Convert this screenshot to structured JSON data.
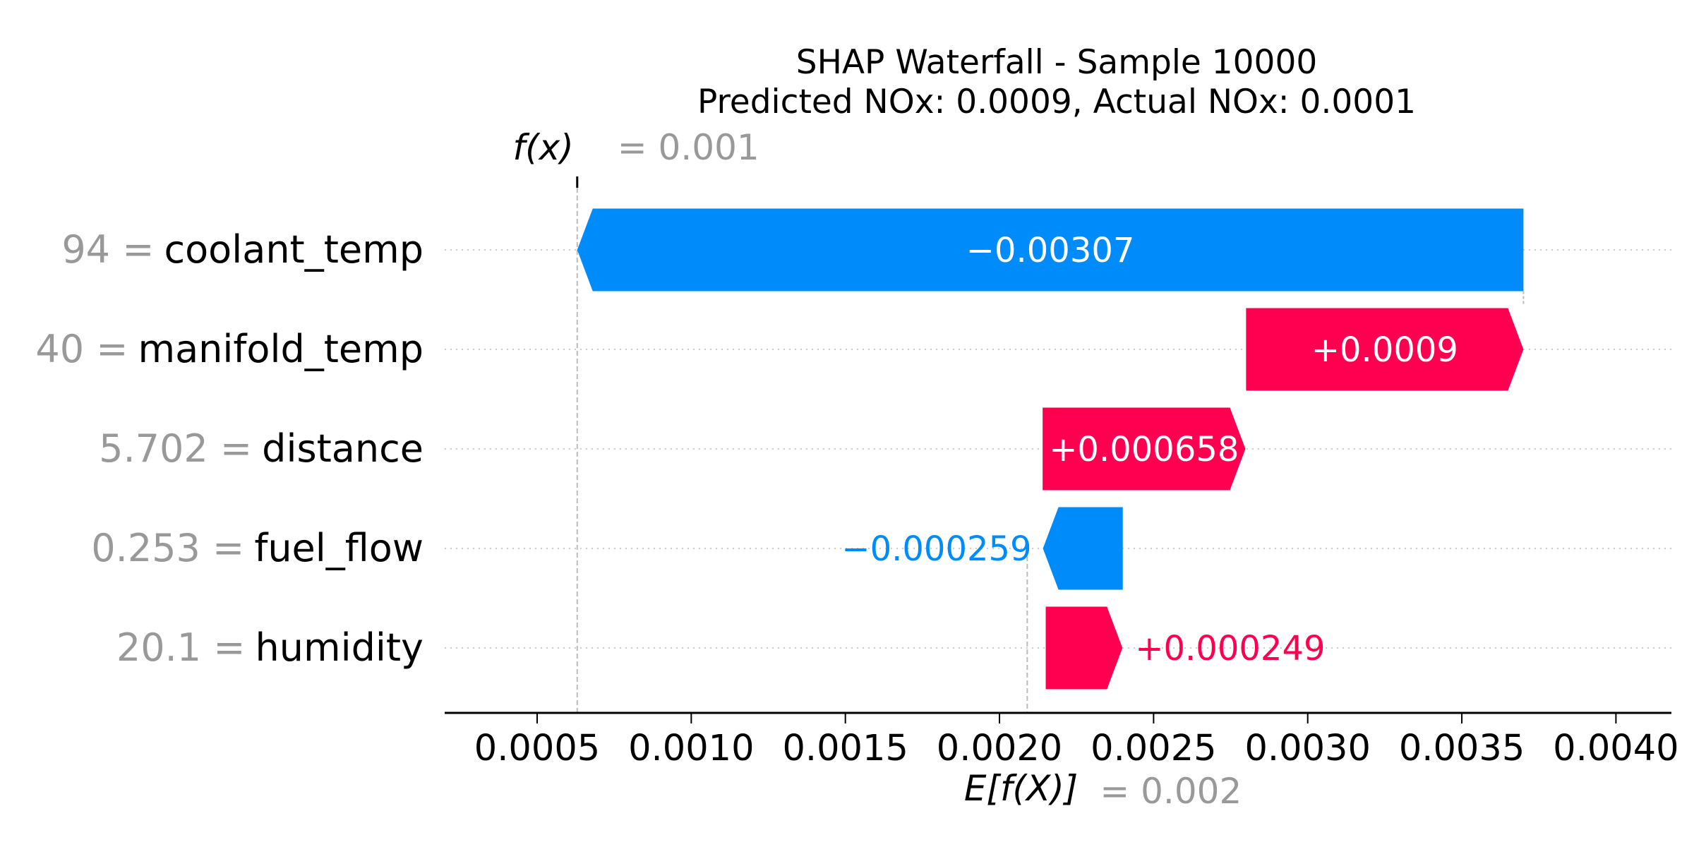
{
  "chart_data": {
    "type": "waterfall",
    "title": "SHAP Waterfall - Sample 10000",
    "subtitle": "Predicted NOx: 0.0009, Actual NOx: 0.0001",
    "fx_label": "f(x)",
    "fx_value_text": "= 0.001",
    "fx_value": 0.00063,
    "expected_label": "E[f(X)]",
    "expected_value_text": "= 0.002",
    "expected_value": 0.00209,
    "xlim": [
      0.0002,
      0.00418
    ],
    "x_ticks": [
      0.0005,
      0.001,
      0.0015,
      0.002,
      0.0025,
      0.003,
      0.0035,
      0.004
    ],
    "x_tick_labels": [
      "0.0005",
      "0.0010",
      "0.0015",
      "0.0020",
      "0.0025",
      "0.0030",
      "0.0035",
      "0.0040"
    ],
    "features": [
      {
        "name": "coolant_temp",
        "value_text": "94",
        "contribution": -0.00307,
        "label": "−0.00307",
        "start": 0.0037
      },
      {
        "name": "manifold_temp",
        "value_text": "40",
        "contribution": 0.0009,
        "label": "+0.0009",
        "start": 0.0028
      },
      {
        "name": "distance",
        "value_text": "5.702",
        "contribution": 0.000658,
        "label": "+0.000658",
        "start": 0.00214
      },
      {
        "name": "fuel_flow",
        "value_text": "0.253",
        "contribution": -0.000259,
        "label": "−0.000259",
        "start": 0.0024
      },
      {
        "name": "humidity",
        "value_text": "20.1",
        "contribution": 0.000249,
        "label": "+0.000249",
        "start": 0.00215
      }
    ],
    "colors": {
      "positive": "#ff0051",
      "negative": "#008bfb",
      "muted": "#999999"
    }
  }
}
